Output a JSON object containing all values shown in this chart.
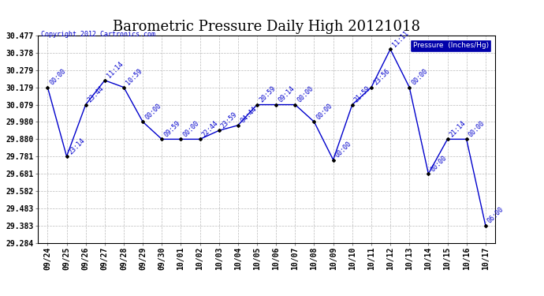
{
  "title": "Barometric Pressure Daily High 20121018",
  "copyright": "Copyright 2012 Cartronics.com",
  "legend_label": "Pressure  (Inches/Hg)",
  "dates": [
    "09/24",
    "09/25",
    "09/26",
    "09/27",
    "09/28",
    "09/29",
    "09/30",
    "10/01",
    "10/02",
    "10/03",
    "10/04",
    "10/05",
    "10/06",
    "10/07",
    "10/08",
    "10/09",
    "10/10",
    "10/11",
    "10/12",
    "10/13",
    "10/14",
    "10/15",
    "10/16",
    "10/17"
  ],
  "values": [
    30.179,
    29.781,
    30.079,
    30.219,
    30.179,
    29.98,
    29.88,
    29.88,
    29.88,
    29.93,
    29.96,
    30.079,
    30.079,
    30.079,
    29.98,
    29.761,
    30.079,
    30.179,
    30.398,
    30.179,
    29.681,
    29.88,
    29.88,
    29.383
  ],
  "point_labels": [
    "00:00",
    "23:14",
    "23:44",
    "11:14",
    "10:59",
    "00:00",
    "09:59",
    "00:00",
    "22:44",
    "23:59",
    "04:44",
    "20:59",
    "09:14",
    "00:00",
    "00:00",
    "00:00",
    "21:59",
    "23:56",
    "11:11",
    "00:00",
    "00:00",
    "21:14",
    "00:00",
    "06:00"
  ],
  "ylim": [
    29.284,
    30.477
  ],
  "yticks": [
    29.284,
    29.383,
    29.483,
    29.582,
    29.681,
    29.781,
    29.88,
    29.98,
    30.079,
    30.179,
    30.279,
    30.378,
    30.477
  ],
  "line_color": "#0000cc",
  "marker_color": "#000000",
  "bg_color": "#ffffff",
  "grid_color": "#bbbbbb",
  "title_fontsize": 13,
  "tick_fontsize": 7,
  "point_label_fontsize": 6,
  "legend_bg": "#0000aa",
  "legend_fg": "#ffffff",
  "border_color": "#000000"
}
